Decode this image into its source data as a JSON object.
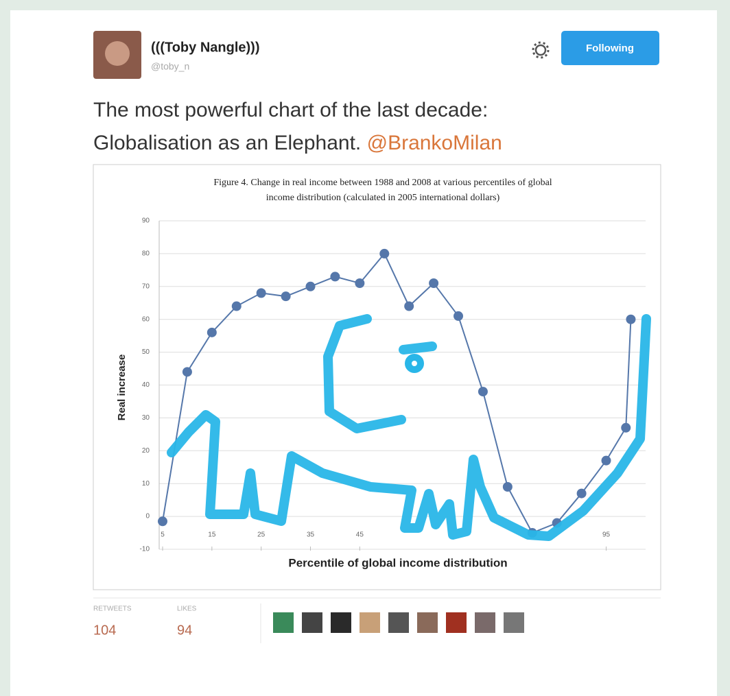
{
  "tweet": {
    "name": "(((Toby Nangle)))",
    "handle": "@toby_n",
    "follow_button": "Following",
    "text_lines": [
      "The most powerful chart of the last decade:",
      "Globalisation as an Elephant."
    ],
    "mention": "@BrankoMilan",
    "stats": {
      "retweets_label": "RETWEETS",
      "retweets": "104",
      "likes_label": "LIKES",
      "likes": "94"
    }
  },
  "chart": {
    "type": "line",
    "title_lines": [
      "Figure 4. Change in real income between 1988 and 2008 at various percentiles of global",
      "income distribution (calculated in 2005 international dollars)"
    ],
    "x_label": "Percentile of global income distribution",
    "y_label": "Real increase",
    "x": [
      5,
      10,
      15,
      20,
      25,
      30,
      35,
      40,
      45,
      50,
      55,
      60,
      65,
      70,
      75,
      80,
      85,
      90,
      95,
      99,
      100
    ],
    "y": [
      -1.5,
      44,
      56,
      64,
      68,
      67,
      70,
      73,
      71,
      80,
      64,
      71,
      61,
      38,
      9,
      -5,
      -2,
      7,
      17,
      27,
      60
    ],
    "color": "#5577aa",
    "xlim": [
      5,
      103
    ],
    "ylim": [
      -10,
      90
    ],
    "xticks": [
      5,
      15,
      25,
      35,
      45,
      95
    ],
    "yticks": [
      -10,
      0,
      10,
      20,
      30,
      40,
      50,
      60,
      70,
      80,
      90
    ],
    "grid": true
  }
}
